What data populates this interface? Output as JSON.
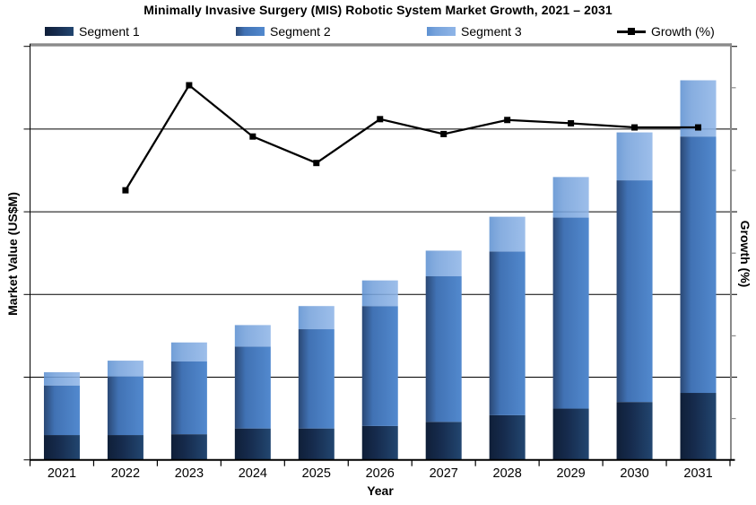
{
  "title": "Minimally Invasive Surgery (MIS) Robotic System Market Growth, 2021 – 2031",
  "legend": {
    "position": "top",
    "items": [
      {
        "label": "Segment 1",
        "kind": "gradient-swatch"
      },
      {
        "label": "Segment 2",
        "kind": "gradient-swatch"
      },
      {
        "label": "Segment 3",
        "kind": "gradient-swatch"
      },
      {
        "label": "Growth (%)",
        "kind": "line-with-square-marker"
      }
    ]
  },
  "axes": {
    "x": {
      "label": "Year"
    },
    "y_left": {
      "label": "Market Value (US$M)",
      "numeric_tick_labels": "none (unlabeled major ticks and gridlines only)"
    },
    "y_right": {
      "label": "Growth (%)",
      "numeric_tick_labels": "none (unlabeled major and minor ticks only)"
    }
  },
  "chart_data": {
    "type": "combo",
    "subtype": "stacked-bar + line",
    "title": "Minimally Invasive Surgery (MIS) Robotic System Market Growth, 2021 – 2031",
    "categories": [
      "2021",
      "2022",
      "2023",
      "2024",
      "2025",
      "2026",
      "2027",
      "2028",
      "2029",
      "2030",
      "2031"
    ],
    "xlabel": "Year",
    "ylabel_left": "Market Value (US$M)",
    "ylabel_right": "Growth (%)",
    "ylim_left": [
      0,
      5
    ],
    "ylim_right": [
      0,
      5
    ],
    "units_note": "Both y-axes are unlabeled; values are expressed in gridline units where 1 = one horizontal gridline interval and the full axis spans 0-5.",
    "gridlines": "horizontal at units 1,2,3,4",
    "legend_position": "top",
    "colors": {
      "growth_line": "#000000",
      "plot_border_gray": "#8a8a8a",
      "axis_black": "#000000"
    },
    "series": [
      {
        "name": "Segment 1",
        "chart": "bar",
        "stack": "total",
        "axis": "left",
        "gradient_stops": [
          [
            "0%",
            "#0F1F38"
          ],
          [
            "40%",
            "#162B4D"
          ],
          [
            "100%",
            "#224670"
          ]
        ],
        "values": [
          0.3,
          0.3,
          0.31,
          0.38,
          0.38,
          0.41,
          0.46,
          0.54,
          0.62,
          0.7,
          0.81
        ]
      },
      {
        "name": "Segment 2",
        "chart": "bar",
        "stack": "total",
        "axis": "left",
        "gradient_stops": [
          [
            "0%",
            "#2A4875"
          ],
          [
            "30%",
            "#4172B4"
          ],
          [
            "100%",
            "#5289CE"
          ]
        ],
        "values": [
          0.6,
          0.71,
          0.88,
          0.99,
          1.2,
          1.45,
          1.76,
          1.98,
          2.31,
          2.68,
          3.1
        ]
      },
      {
        "name": "Segment 3",
        "chart": "bar",
        "stack": "total",
        "axis": "left",
        "gradient_stops": [
          [
            "0%",
            "#5E91D1"
          ],
          [
            "30%",
            "#76A2DB"
          ],
          [
            "100%",
            "#8FB5E7"
          ]
        ],
        "semi_transparent": true,
        "values": [
          0.16,
          0.19,
          0.23,
          0.26,
          0.28,
          0.31,
          0.31,
          0.42,
          0.49,
          0.58,
          0.68
        ]
      },
      {
        "name": "Growth (%)",
        "chart": "line",
        "axis": "right",
        "color": "#000000",
        "marker": "filled-square",
        "values": [
          null,
          3.26,
          4.53,
          3.91,
          3.59,
          4.12,
          3.94,
          4.11,
          4.07,
          4.02,
          4.02
        ]
      }
    ]
  }
}
